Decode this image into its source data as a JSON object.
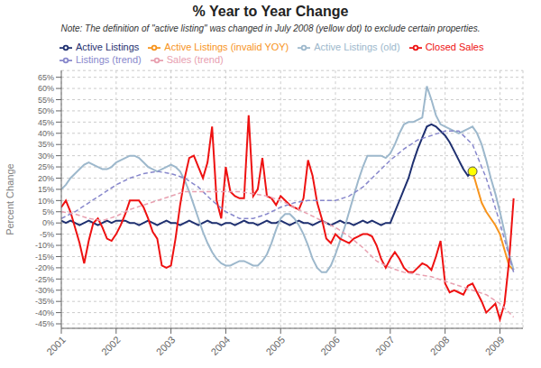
{
  "chart_data": {
    "type": "line",
    "title": "% Year to Year Change",
    "subtitle": "Note: The definition of \"active listing\" was changed in July 2008 (yellow dot) to exclude certain properties.",
    "y_label": "Percent Change",
    "xlim": [
      2001.0,
      2009.42
    ],
    "xticks": [
      2001,
      2002,
      2003,
      2004,
      2005,
      2006,
      2007,
      2008,
      2009
    ],
    "ylim": [
      -0.47,
      0.68
    ],
    "yticks": [
      {
        "value": -0.45,
        "label": "-45%"
      },
      {
        "value": -0.4,
        "label": "-40%"
      },
      {
        "value": -0.35,
        "label": "-35%"
      },
      {
        "value": -0.3,
        "label": "-30%"
      },
      {
        "value": -0.25,
        "label": "-25%"
      },
      {
        "value": -0.2,
        "label": "-20%"
      },
      {
        "value": -0.15,
        "label": "-15%"
      },
      {
        "value": -0.1,
        "label": "-10%"
      },
      {
        "value": -0.05,
        "label": "-5%"
      },
      {
        "value": 0.0,
        "label": "0%"
      },
      {
        "value": 0.05,
        "label": "5%"
      },
      {
        "value": 0.1,
        "label": "10%"
      },
      {
        "value": 0.15,
        "label": "15%"
      },
      {
        "value": 0.2,
        "label": "20%"
      },
      {
        "value": 0.25,
        "label": "25%"
      },
      {
        "value": 0.3,
        "label": "30%"
      },
      {
        "value": 0.35,
        "label": "35%"
      },
      {
        "value": 0.4,
        "label": "40%"
      },
      {
        "value": 0.45,
        "label": "45%"
      },
      {
        "value": 0.5,
        "label": "50%"
      },
      {
        "value": 0.55,
        "label": "55%"
      },
      {
        "value": 0.6,
        "label": "60%"
      },
      {
        "value": 0.65,
        "label": "65%"
      }
    ],
    "grid": true,
    "legend": "top left",
    "series": [
      {
        "name": "Active Listings",
        "color": "#1f3070",
        "line_style": "solid",
        "x": [
          2001.0,
          2001.083,
          2001.167,
          2001.25,
          2001.333,
          2001.417,
          2001.5,
          2001.583,
          2001.667,
          2001.75,
          2001.833,
          2001.917,
          2002.0,
          2002.083,
          2002.167,
          2002.25,
          2002.333,
          2002.417,
          2002.5,
          2002.583,
          2002.667,
          2002.75,
          2002.833,
          2002.917,
          2003.0,
          2003.083,
          2003.167,
          2003.25,
          2003.333,
          2003.417,
          2003.5,
          2003.583,
          2003.667,
          2003.75,
          2003.833,
          2003.917,
          2004.0,
          2004.083,
          2004.167,
          2004.25,
          2004.333,
          2004.417,
          2004.5,
          2004.583,
          2004.667,
          2004.75,
          2004.833,
          2004.917,
          2005.0,
          2005.083,
          2005.167,
          2005.25,
          2005.333,
          2005.417,
          2005.5,
          2005.583,
          2005.667,
          2005.75,
          2005.833,
          2005.917,
          2006.0,
          2006.083,
          2006.167,
          2006.25,
          2006.333,
          2006.417,
          2006.5,
          2006.583,
          2006.667,
          2006.75,
          2006.833,
          2006.917,
          2007.0,
          2007.083,
          2007.167,
          2007.25,
          2007.333,
          2007.417,
          2007.5,
          2007.583,
          2007.667,
          2007.75,
          2007.833,
          2007.917,
          2008.0,
          2008.083,
          2008.167,
          2008.25,
          2008.333,
          2008.417,
          2008.5
        ],
        "values": [
          0.01,
          0.0,
          0.01,
          0.0,
          -0.01,
          0.0,
          0.01,
          0.0,
          -0.01,
          0.0,
          0.01,
          0.0,
          0.01,
          0.01,
          0.01,
          0.0,
          0.0,
          -0.01,
          0.0,
          0.01,
          0.0,
          -0.01,
          0.0,
          0.01,
          0.0,
          0.0,
          -0.01,
          0.0,
          0.01,
          0.0,
          -0.01,
          0.0,
          0.01,
          0.0,
          0.0,
          -0.01,
          0.0,
          0.0,
          -0.01,
          0.0,
          0.01,
          0.0,
          0.0,
          -0.01,
          0.0,
          0.01,
          0.0,
          0.0,
          0.01,
          0.0,
          -0.01,
          0.0,
          0.01,
          0.0,
          0.0,
          -0.01,
          0.0,
          0.01,
          0.0,
          -0.01,
          0.0,
          0.01,
          0.0,
          0.0,
          -0.01,
          0.0,
          0.01,
          0.0,
          0.01,
          0.0,
          -0.01,
          0.0,
          0.0,
          0.05,
          0.1,
          0.15,
          0.2,
          0.27,
          0.33,
          0.38,
          0.43,
          0.44,
          0.43,
          0.41,
          0.39,
          0.36,
          0.32,
          0.28,
          0.24,
          0.21,
          0.23
        ]
      },
      {
        "name": "Active Listings (invalid YOY)",
        "color": "#f7941d",
        "line_style": "solid",
        "x": [
          2008.5,
          2008.583,
          2008.667,
          2008.75,
          2008.833,
          2008.917,
          2009.0,
          2009.083,
          2009.167,
          2009.25
        ],
        "values": [
          0.23,
          0.16,
          0.09,
          0.05,
          0.02,
          -0.01,
          -0.05,
          -0.12,
          -0.19,
          -0.21
        ]
      },
      {
        "name": "Active Listings (old)",
        "color": "#9db8cc",
        "line_style": "solid",
        "x": [
          2001.0,
          2001.083,
          2001.167,
          2001.25,
          2001.333,
          2001.417,
          2001.5,
          2001.583,
          2001.667,
          2001.75,
          2001.833,
          2001.917,
          2002.0,
          2002.083,
          2002.167,
          2002.25,
          2002.333,
          2002.417,
          2002.5,
          2002.583,
          2002.667,
          2002.75,
          2002.833,
          2002.917,
          2003.0,
          2003.083,
          2003.167,
          2003.25,
          2003.333,
          2003.417,
          2003.5,
          2003.583,
          2003.667,
          2003.75,
          2003.833,
          2003.917,
          2004.0,
          2004.083,
          2004.167,
          2004.25,
          2004.333,
          2004.417,
          2004.5,
          2004.583,
          2004.667,
          2004.75,
          2004.833,
          2004.917,
          2005.0,
          2005.083,
          2005.167,
          2005.25,
          2005.333,
          2005.417,
          2005.5,
          2005.583,
          2005.667,
          2005.75,
          2005.833,
          2005.917,
          2006.0,
          2006.083,
          2006.167,
          2006.25,
          2006.333,
          2006.417,
          2006.5,
          2006.583,
          2006.667,
          2006.75,
          2006.833,
          2006.917,
          2007.0,
          2007.083,
          2007.167,
          2007.25,
          2007.333,
          2007.417,
          2007.5,
          2007.583,
          2007.667,
          2007.75,
          2007.833,
          2007.917,
          2008.0,
          2008.083,
          2008.167,
          2008.25,
          2008.333,
          2008.417,
          2008.5,
          2008.583,
          2008.667,
          2008.75,
          2008.833,
          2008.917,
          2009.0,
          2009.083,
          2009.167,
          2009.25
        ],
        "values": [
          0.15,
          0.17,
          0.2,
          0.22,
          0.24,
          0.26,
          0.27,
          0.26,
          0.25,
          0.24,
          0.24,
          0.25,
          0.27,
          0.28,
          0.29,
          0.3,
          0.3,
          0.29,
          0.27,
          0.25,
          0.24,
          0.23,
          0.24,
          0.25,
          0.26,
          0.25,
          0.23,
          0.19,
          0.14,
          0.08,
          0.02,
          -0.04,
          -0.09,
          -0.13,
          -0.16,
          -0.18,
          -0.19,
          -0.19,
          -0.18,
          -0.17,
          -0.17,
          -0.18,
          -0.19,
          -0.19,
          -0.17,
          -0.14,
          -0.09,
          -0.03,
          0.02,
          0.04,
          0.04,
          0.02,
          -0.01,
          -0.05,
          -0.1,
          -0.16,
          -0.2,
          -0.22,
          -0.22,
          -0.19,
          -0.14,
          -0.08,
          -0.02,
          0.05,
          0.12,
          0.19,
          0.25,
          0.3,
          0.3,
          0.3,
          0.3,
          0.29,
          0.31,
          0.35,
          0.4,
          0.44,
          0.45,
          0.45,
          0.46,
          0.47,
          0.61,
          0.55,
          0.48,
          0.44,
          0.43,
          0.42,
          0.41,
          0.4,
          0.41,
          0.42,
          0.43,
          0.4,
          0.35,
          0.28,
          0.2,
          0.13,
          0.05,
          -0.04,
          -0.14,
          -0.21
        ]
      },
      {
        "name": "Closed Sales",
        "color": "#ee1111",
        "line_style": "solid",
        "x": [
          2001.0,
          2001.083,
          2001.167,
          2001.25,
          2001.333,
          2001.417,
          2001.5,
          2001.583,
          2001.667,
          2001.75,
          2001.833,
          2001.917,
          2002.0,
          2002.083,
          2002.167,
          2002.25,
          2002.333,
          2002.417,
          2002.5,
          2002.583,
          2002.667,
          2002.75,
          2002.833,
          2002.917,
          2003.0,
          2003.083,
          2003.167,
          2003.25,
          2003.333,
          2003.417,
          2003.5,
          2003.583,
          2003.667,
          2003.75,
          2003.833,
          2003.917,
          2004.0,
          2004.083,
          2004.167,
          2004.25,
          2004.333,
          2004.417,
          2004.5,
          2004.583,
          2004.667,
          2004.75,
          2004.833,
          2004.917,
          2005.0,
          2005.083,
          2005.167,
          2005.25,
          2005.333,
          2005.417,
          2005.5,
          2005.583,
          2005.667,
          2005.75,
          2005.833,
          2005.917,
          2006.0,
          2006.083,
          2006.167,
          2006.25,
          2006.333,
          2006.417,
          2006.5,
          2006.583,
          2006.667,
          2006.75,
          2006.833,
          2006.917,
          2007.0,
          2007.083,
          2007.167,
          2007.25,
          2007.333,
          2007.417,
          2007.5,
          2007.583,
          2007.667,
          2007.75,
          2007.833,
          2007.917,
          2008.0,
          2008.083,
          2008.167,
          2008.25,
          2008.333,
          2008.417,
          2008.5,
          2008.583,
          2008.667,
          2008.75,
          2008.833,
          2008.917,
          2009.0,
          2009.083,
          2009.167,
          2009.25
        ],
        "values": [
          0.07,
          0.1,
          0.05,
          -0.02,
          -0.09,
          -0.18,
          -0.08,
          0.0,
          0.02,
          -0.02,
          -0.07,
          -0.08,
          -0.05,
          -0.01,
          0.04,
          0.1,
          0.1,
          0.1,
          0.07,
          0.02,
          -0.04,
          -0.07,
          -0.19,
          -0.2,
          -0.19,
          -0.07,
          0.08,
          0.2,
          0.29,
          0.3,
          0.25,
          0.2,
          0.27,
          0.43,
          0.1,
          0.02,
          0.25,
          0.14,
          0.12,
          0.11,
          0.11,
          0.48,
          0.12,
          0.15,
          0.29,
          0.12,
          0.11,
          0.08,
          0.12,
          0.1,
          0.08,
          0.07,
          0.06,
          0.11,
          0.28,
          0.21,
          0.09,
          0.02,
          -0.07,
          -0.09,
          -0.05,
          -0.07,
          -0.08,
          -0.09,
          -0.07,
          -0.06,
          -0.05,
          -0.05,
          -0.06,
          -0.1,
          -0.16,
          -0.2,
          -0.16,
          -0.13,
          -0.16,
          -0.2,
          -0.22,
          -0.22,
          -0.2,
          -0.18,
          -0.19,
          -0.21,
          -0.15,
          -0.08,
          -0.27,
          -0.31,
          -0.3,
          -0.31,
          -0.32,
          -0.28,
          -0.27,
          -0.31,
          -0.35,
          -0.4,
          -0.38,
          -0.36,
          -0.43,
          -0.36,
          -0.17,
          0.11
        ]
      },
      {
        "name": "Listings (trend)",
        "color": "#8888cc",
        "line_style": "dashed",
        "x": [
          2001.0,
          2001.25,
          2001.5,
          2001.75,
          2002.0,
          2002.25,
          2002.5,
          2002.75,
          2003.0,
          2003.25,
          2003.5,
          2003.75,
          2004.0,
          2004.25,
          2004.5,
          2004.75,
          2005.0,
          2005.25,
          2005.5,
          2005.75,
          2006.0,
          2006.25,
          2006.5,
          2006.75,
          2007.0,
          2007.25,
          2007.5,
          2007.75,
          2008.0,
          2008.25,
          2008.5,
          2008.75,
          2009.0,
          2009.25
        ],
        "values": [
          0.02,
          0.05,
          0.09,
          0.13,
          0.17,
          0.2,
          0.22,
          0.23,
          0.22,
          0.2,
          0.16,
          0.1,
          0.05,
          0.02,
          0.02,
          0.04,
          0.07,
          0.09,
          0.1,
          0.1,
          0.1,
          0.12,
          0.16,
          0.22,
          0.28,
          0.33,
          0.37,
          0.39,
          0.41,
          0.41,
          0.35,
          0.2,
          0.0,
          -0.22
        ]
      },
      {
        "name": "Sales (trend)",
        "color": "#e8a0b0",
        "line_style": "dashed",
        "x": [
          2001.0,
          2001.25,
          2001.5,
          2001.75,
          2002.0,
          2002.25,
          2002.5,
          2002.75,
          2003.0,
          2003.25,
          2003.5,
          2003.75,
          2004.0,
          2004.25,
          2004.5,
          2004.75,
          2005.0,
          2005.25,
          2005.5,
          2005.75,
          2006.0,
          2006.25,
          2006.5,
          2006.75,
          2007.0,
          2007.25,
          2007.5,
          2007.75,
          2008.0,
          2008.25,
          2008.5,
          2008.75,
          2009.0,
          2009.25
        ],
        "values": [
          0.05,
          0.04,
          0.02,
          0.01,
          0.03,
          0.06,
          0.08,
          0.1,
          0.12,
          0.14,
          0.14,
          0.14,
          0.14,
          0.14,
          0.13,
          0.12,
          0.1,
          0.07,
          0.04,
          0.01,
          -0.02,
          -0.06,
          -0.11,
          -0.17,
          -0.2,
          -0.22,
          -0.23,
          -0.24,
          -0.26,
          -0.28,
          -0.3,
          -0.32,
          -0.36,
          -0.42
        ]
      },
      {
        "type": "scatter",
        "color": "#ffff00",
        "marker": "circle",
        "x": [
          2008.5
        ],
        "values": [
          0.23
        ]
      }
    ]
  }
}
